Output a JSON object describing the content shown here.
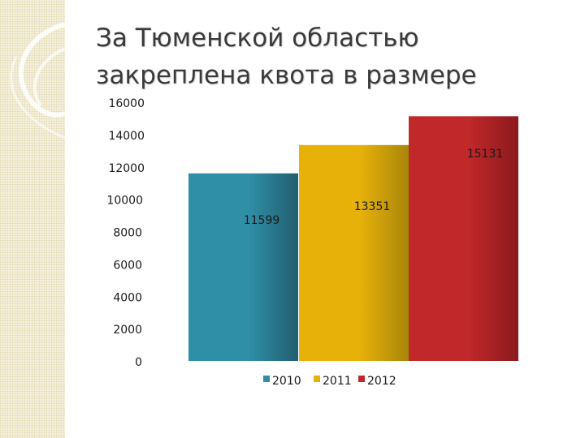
{
  "slide": {
    "title_line1": "За Тюменской областью",
    "title_line2": "закреплена квота в размере"
  },
  "chart_data": {
    "type": "bar",
    "categories": [
      "2010",
      "2011",
      "2012"
    ],
    "values": [
      11599,
      13351,
      15131
    ],
    "data_labels": [
      "11599",
      "13351",
      "15131"
    ],
    "ylim": [
      0,
      16000
    ],
    "yticks": [
      "0",
      "2000",
      "4000",
      "6000",
      "8000",
      "10000",
      "12000",
      "14000",
      "16000"
    ],
    "grid": false,
    "legend": {
      "position": "bottom",
      "entries": [
        "2010",
        "2011",
        "2012"
      ]
    },
    "colors": [
      "#2f8fa6",
      "#e8b10a",
      "#c0282a"
    ],
    "dark_colors": [
      "#225e70",
      "#a8860a",
      "#8a1a1c"
    ]
  }
}
